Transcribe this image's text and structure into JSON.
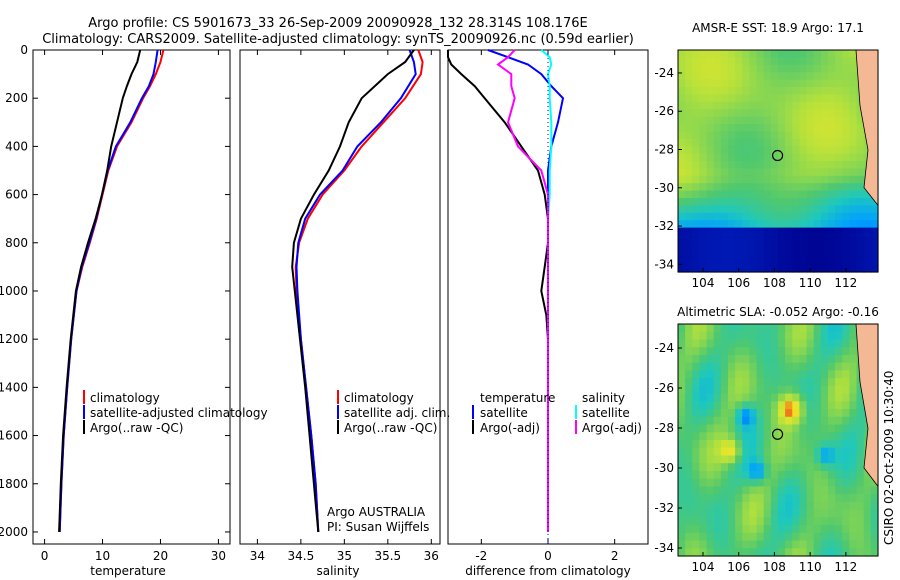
{
  "header": {
    "line1": "Argo profile: CS 5901673_33 26-Sep-2009 20090928_132 28.314S 108.176E",
    "line2": "Climatology: CARS2009. Satellite-adjusted climatology: synTS_20090926.nc (0.59d earlier)"
  },
  "side_label": "CSIRO 02-Oct-2009 10:30:40",
  "colors": {
    "climatology": "#ff0000",
    "satellite": "#0000ff",
    "argo": "#000000",
    "argo_sal": "#ff00ff",
    "sat_sal": "#00ffff"
  },
  "chart_data": [
    {
      "type": "line",
      "xlabel": "temperature",
      "ylabel": "",
      "xlim": [
        -2,
        32
      ],
      "ylim": [
        2050,
        0
      ],
      "xticks": [
        "0",
        "10",
        "20",
        "30"
      ],
      "yticks": [
        "0",
        "200",
        "400",
        "600",
        "800",
        "1000",
        "1200",
        "1400",
        "1600",
        "1800",
        "2000"
      ],
      "legend": [
        "climatology",
        "satellite-adjusted climatology",
        "Argo(..raw -QC)"
      ],
      "depth": [
        0,
        50,
        100,
        150,
        200,
        300,
        400,
        500,
        600,
        700,
        800,
        900,
        1000,
        1200,
        1400,
        1600,
        1800,
        2000
      ],
      "series": [
        {
          "key": "clim",
          "values": [
            20.5,
            20,
            19.2,
            18.2,
            17,
            15,
            12.5,
            11,
            10,
            9,
            7.8,
            6.5,
            5.5,
            4.6,
            3.9,
            3.3,
            2.9,
            2.6
          ]
        },
        {
          "key": "sat",
          "values": [
            19.5,
            19.2,
            18.8,
            18,
            16.8,
            14.8,
            12.3,
            10.9,
            9.9,
            8.9,
            7.7,
            6.4,
            5.5,
            4.6,
            3.9,
            3.3,
            2.9,
            2.6
          ]
        },
        {
          "key": "argo",
          "values": [
            16.5,
            16,
            15,
            14.2,
            13.5,
            12.5,
            11.5,
            10.8,
            9.9,
            8.8,
            7.5,
            6.3,
            5.4,
            4.5,
            3.8,
            3.2,
            2.8,
            2.5
          ]
        }
      ]
    },
    {
      "type": "line",
      "xlabel": "salinity",
      "ylabel": "",
      "xlim": [
        33.8,
        36.1
      ],
      "xticks": [
        "34",
        "34.5",
        "35",
        "35.5",
        "36"
      ],
      "legend": [
        "climatology",
        "satellite adj. clim.",
        "Argo(..raw -QC)"
      ],
      "annotation": [
        "Argo AUSTRALIA",
        "PI: Susan Wijffels"
      ],
      "depth": [
        0,
        50,
        100,
        200,
        300,
        400,
        500,
        600,
        700,
        800,
        900,
        1000,
        1200,
        1400,
        1600,
        1800,
        2000
      ],
      "series": [
        {
          "key": "clim",
          "values": [
            35.85,
            35.9,
            35.88,
            35.7,
            35.45,
            35.2,
            35.0,
            34.75,
            34.58,
            34.48,
            34.44,
            34.45,
            34.5,
            34.56,
            34.62,
            34.67,
            34.7
          ]
        },
        {
          "key": "sat",
          "values": [
            35.75,
            35.8,
            35.82,
            35.65,
            35.42,
            35.15,
            34.98,
            34.72,
            34.55,
            34.47,
            34.45,
            34.46,
            34.5,
            34.56,
            34.62,
            34.67,
            34.7
          ]
        },
        {
          "key": "argo",
          "values": [
            35.8,
            35.7,
            35.5,
            35.2,
            35.05,
            34.95,
            34.82,
            34.65,
            34.5,
            34.42,
            34.4,
            34.43,
            34.49,
            34.55,
            34.6,
            34.65,
            34.7
          ]
        }
      ]
    },
    {
      "type": "line",
      "xlabel": "difference from climatology",
      "ylabel": "",
      "xlim": [
        -3,
        3
      ],
      "xticks": [
        "-2",
        "0",
        "2"
      ],
      "legend_temperature": [
        "temperature",
        "satellite",
        "Argo(-adj)"
      ],
      "legend_salinity": [
        "salinity",
        "satellite",
        "Argo(-adj)"
      ],
      "depth": [
        0,
        30,
        60,
        100,
        150,
        200,
        300,
        400,
        500,
        600,
        700,
        800,
        900,
        1000,
        1100,
        1200,
        1400,
        1600,
        1800,
        2000
      ],
      "series": [
        {
          "key": "sat_t",
          "values": [
            -1.8,
            -1.2,
            -0.6,
            -0.2,
            0.1,
            0.45,
            0.3,
            0.1,
            0.0,
            0.0,
            0.0,
            0.0,
            0.0,
            0.0,
            0.0,
            0.0,
            0.0,
            0.0,
            0.0,
            0.0
          ]
        },
        {
          "key": "argo_t",
          "values": [
            -3.0,
            -3.0,
            -2.9,
            -2.6,
            -2.2,
            -1.9,
            -1.3,
            -0.8,
            -0.3,
            -0.1,
            0.0,
            0.0,
            -0.1,
            -0.2,
            -0.05,
            0.0,
            0.0,
            0.0,
            0.0,
            0.0
          ]
        },
        {
          "key": "sat_s",
          "values": [
            -0.2,
            0.05,
            0.1,
            0.0,
            0.05,
            0.05,
            0.1,
            0.1,
            0.05,
            0.05,
            0.0,
            0.0,
            0.0,
            0.0,
            0.0,
            0.0,
            0.0,
            0.0,
            0.0,
            0.0
          ]
        },
        {
          "key": "argo_s",
          "values": [
            -1.0,
            -1.2,
            -1.5,
            -1.1,
            -1.1,
            -1.0,
            -1.2,
            -0.9,
            -0.2,
            0.0,
            0.0,
            0.0,
            0.0,
            0.0,
            0.0,
            0.0,
            0.0,
            0.0,
            0.0,
            0.0
          ]
        }
      ]
    },
    {
      "type": "heatmap",
      "title": "AMSR-E SST: 18.9  Argo: 17.1",
      "xticks": [
        "104",
        "106",
        "108",
        "110",
        "112"
      ],
      "yticks": [
        "-24",
        "-26",
        "-28",
        "-30",
        "-32",
        "-34"
      ],
      "xlim": [
        102.6,
        113.8
      ],
      "ylim": [
        -34.4,
        -22.8
      ],
      "marker": {
        "lon": 108.176,
        "lat": -28.314
      }
    },
    {
      "type": "heatmap",
      "title": "Altimetric SLA: -0.052  Argo: -0.16",
      "xticks": [
        "104",
        "106",
        "108",
        "110",
        "112"
      ],
      "yticks": [
        "-24",
        "-26",
        "-28",
        "-30",
        "-32",
        "-34"
      ],
      "xlim": [
        102.6,
        113.8
      ],
      "ylim": [
        -34.4,
        -22.8
      ],
      "marker": {
        "lon": 108.176,
        "lat": -28.314
      }
    }
  ]
}
